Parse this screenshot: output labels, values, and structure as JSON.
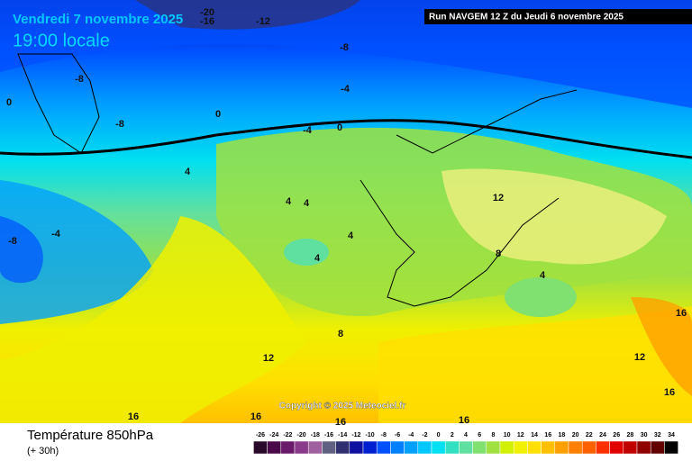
{
  "header": {
    "title": "Vendredi 7 novembre 2025",
    "time": "19:00 locale",
    "run": "Run NAVGEM 12 Z du Jeudi 6 novembre 2025"
  },
  "map": {
    "copyright": "Copyright © 2025 Meteociel.fr",
    "contour_labels": [
      -20,
      -16,
      -12,
      -8,
      -8,
      -8,
      -4,
      -4,
      -4,
      -8,
      0,
      0,
      0,
      4,
      4,
      4,
      4,
      4,
      4,
      12,
      8,
      8,
      12,
      12,
      16,
      16,
      16,
      16,
      16,
      16
    ]
  },
  "footer": {
    "title": "Température 850hPa",
    "lead": "(+ 30h)"
  },
  "scale": {
    "labels": [
      -26,
      -24,
      -22,
      -20,
      -18,
      -16,
      -14,
      -12,
      -10,
      -8,
      -6,
      -4,
      -2,
      0,
      2,
      4,
      6,
      8,
      10,
      12,
      14,
      16,
      18,
      20,
      22,
      24,
      26,
      28,
      30,
      32,
      34
    ],
    "colors": [
      "#2a0a2a",
      "#4a0a4a",
      "#6a1a6a",
      "#8a3a8a",
      "#a060a0",
      "#606080",
      "#303070",
      "#1010a0",
      "#0020d0",
      "#0050ff",
      "#0080ff",
      "#00a0ff",
      "#00c8ff",
      "#00e0f0",
      "#30e0c0",
      "#60e0a0",
      "#80e070",
      "#a0e040",
      "#d0f000",
      "#f0f000",
      "#ffe000",
      "#ffc000",
      "#ffa000",
      "#ff8000",
      "#ff6000",
      "#ff3000",
      "#e00000",
      "#c00000",
      "#900000",
      "#600000",
      "#000000"
    ]
  }
}
